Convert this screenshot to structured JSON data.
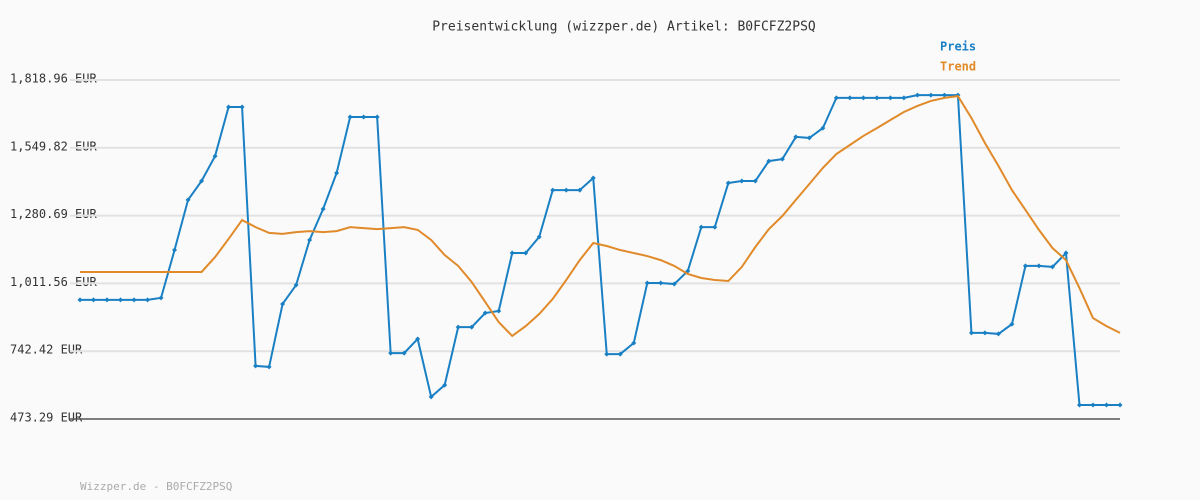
{
  "chart_data": {
    "type": "line",
    "title": "Preisentwicklung (wizzper.de) Artikel: B0FCFZ2PSQ",
    "footer": "Wizzper.de - B0FCFZ2PSQ",
    "categories": [
      null,
      null,
      null,
      null,
      null,
      null,
      null,
      null,
      null,
      null,
      null,
      null,
      null,
      null,
      null,
      null,
      null,
      null,
      null,
      null,
      null,
      null,
      null,
      null,
      null,
      null,
      null,
      null,
      null,
      null,
      null,
      null,
      null,
      null,
      null,
      null,
      null,
      null,
      null,
      null,
      null,
      null,
      null,
      null,
      null,
      null,
      null,
      null,
      null,
      null,
      null,
      null,
      null,
      null,
      null,
      null,
      null,
      null,
      null,
      null,
      null,
      null,
      null,
      null,
      null,
      null,
      null,
      null,
      null,
      null,
      null,
      null,
      null,
      null,
      null,
      null,
      null,
      null
    ],
    "series": [
      {
        "name": "Preis",
        "color": "#1a80c4",
        "markers": true,
        "values": [
          946,
          946,
          946,
          946,
          946,
          946,
          954,
          1144,
          1343,
          1418,
          1517,
          1712,
          1712,
          684,
          680,
          930,
          1005,
          1184,
          1307,
          1450,
          1672,
          1672,
          1672,
          735,
          735,
          791,
          561,
          608,
          838,
          838,
          894,
          902,
          1132,
          1132,
          1196,
          1382,
          1382,
          1382,
          1430,
          731,
          731,
          775,
          1013,
          1013,
          1009,
          1061,
          1235,
          1235,
          1410,
          1418,
          1418,
          1497,
          1505,
          1593,
          1589,
          1628,
          1748,
          1748,
          1748,
          1748,
          1748,
          1748,
          1759,
          1759,
          1759,
          1759,
          815,
          815,
          811,
          850,
          1081,
          1081,
          1077,
          1132,
          529,
          529,
          529,
          529
        ]
      },
      {
        "name": "Trend",
        "color": "#e08a2a",
        "markers": false,
        "values": [
          1057,
          1057,
          1057,
          1057,
          1057,
          1057,
          1057,
          1057,
          1057,
          1057,
          1116,
          1188,
          1263,
          1235,
          1212,
          1208,
          1215,
          1219,
          1215,
          1219,
          1235,
          1231,
          1227,
          1231,
          1235,
          1224,
          1184,
          1124,
          1081,
          1017,
          938,
          858,
          803,
          842,
          890,
          950,
          1025,
          1104,
          1172,
          1160,
          1144,
          1132,
          1120,
          1104,
          1081,
          1049,
          1033,
          1025,
          1021,
          1077,
          1156,
          1227,
          1279,
          1343,
          1406,
          1470,
          1525,
          1561,
          1597,
          1628,
          1660,
          1692,
          1716,
          1736,
          1748,
          1755,
          1668,
          1569,
          1478,
          1382,
          1303,
          1224,
          1152,
          1104,
          993,
          874,
          842,
          815
        ]
      }
    ],
    "ylim": [
      473.29,
      1818.96
    ],
    "yticks": [
      {
        "value": 473.29,
        "label": "473.29 EUR"
      },
      {
        "value": 742.42,
        "label": "742.42 EUR"
      },
      {
        "value": 1011.56,
        "label": "1,011.56 EUR"
      },
      {
        "value": 1280.69,
        "label": "1,280.69 EUR"
      },
      {
        "value": 1549.82,
        "label": "1,549.82 EUR"
      },
      {
        "value": 1818.96,
        "label": "1,818.96 EUR"
      }
    ],
    "grid": true
  }
}
